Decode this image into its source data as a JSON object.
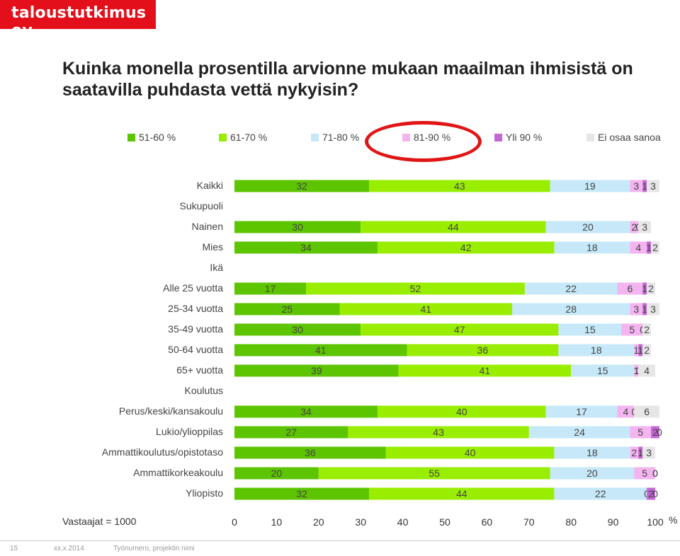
{
  "header": {
    "logo": "taloustutkimus oy"
  },
  "title": "Kuinka monella prosentilla arvionne mukaan maailman ihmisistä on saatavilla puhdasta vettä nykyisin?",
  "legend": [
    {
      "label": "51-60 %",
      "color": "#5dc400"
    },
    {
      "label": "61-70 %",
      "color": "#99ee00"
    },
    {
      "label": "71-80 %",
      "color": "#c6e8f8"
    },
    {
      "label": "81-90 %",
      "color": "#f4b4f0"
    },
    {
      "label": "Yli 90 %",
      "color": "#c467d6"
    },
    {
      "label": "Ei osaa sanoa",
      "color": "#e6e6e6"
    }
  ],
  "footnote": "Vastaajat = 1000",
  "axis_unit": "%",
  "footer": {
    "page": "15",
    "date": "xx.x.2014",
    "project": "Työnumero, projektin nimi"
  },
  "chart_data": {
    "type": "bar",
    "orientation": "horizontal",
    "stacked": true,
    "xlim": [
      0,
      100
    ],
    "xticks": [
      "0",
      "10",
      "20",
      "30",
      "40",
      "50",
      "60",
      "70",
      "80",
      "90",
      "100"
    ],
    "categories": [
      "Kaikki",
      "Sukupuoli",
      "Nainen",
      "Mies",
      "Ikä",
      "Alle 25 vuotta",
      "25-34 vuotta",
      "35-49 vuotta",
      "50-64 vuotta",
      "65+ vuotta",
      "Koulutus",
      "Perus/keski/kansakoulu",
      "Lukio/ylioppilas",
      "Ammattikoulutus/opistotaso",
      "Ammattikorkeakoulu",
      "Yliopisto"
    ],
    "series": [
      {
        "name": "51-60 %",
        "values": [
          32,
          null,
          30,
          34,
          null,
          17,
          25,
          30,
          41,
          39,
          null,
          34,
          27,
          36,
          20,
          32
        ]
      },
      {
        "name": "61-70 %",
        "values": [
          43,
          null,
          44,
          42,
          null,
          52,
          41,
          47,
          36,
          41,
          null,
          40,
          43,
          40,
          55,
          44
        ]
      },
      {
        "name": "71-80 %",
        "values": [
          19,
          null,
          20,
          18,
          null,
          22,
          28,
          15,
          18,
          15,
          null,
          17,
          24,
          18,
          20,
          22
        ]
      },
      {
        "name": "81-90 %",
        "values": [
          3,
          null,
          2,
          4,
          null,
          6,
          3,
          5,
          1,
          1,
          null,
          4,
          5,
          2,
          5,
          0
        ]
      },
      {
        "name": "Yli 90 %",
        "values": [
          1,
          null,
          0,
          1,
          null,
          1,
          1,
          0,
          1,
          0,
          null,
          0,
          2,
          1,
          0,
          2
        ]
      },
      {
        "name": "Ei osaa sanoa",
        "values": [
          3,
          null,
          3,
          2,
          null,
          2,
          3,
          2,
          2,
          4,
          null,
          6,
          0,
          3,
          0,
          0
        ]
      }
    ]
  }
}
